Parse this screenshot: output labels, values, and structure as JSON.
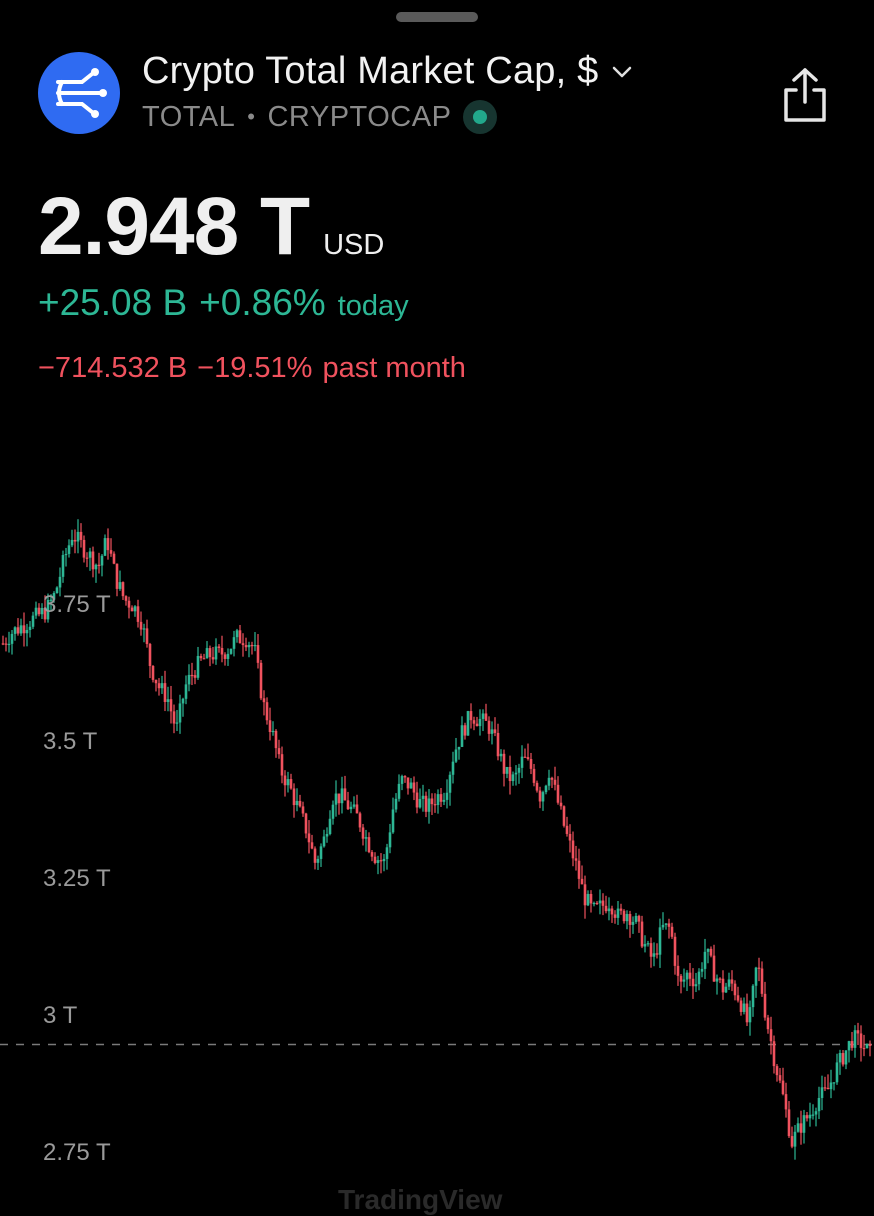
{
  "header": {
    "title": "Crypto Total Market Cap, $",
    "symbol": "TOTAL",
    "separator": "•",
    "exchange": "CRYPTOCAP",
    "logo_icon": "crypto-network-icon",
    "share_icon": "share-icon"
  },
  "quote": {
    "price": "2.948 T",
    "currency": "USD",
    "today_change": "+25.08 B",
    "today_percent": "+0.86%",
    "today_label": "today",
    "month_change": "−714.532 B",
    "month_percent": "−19.51%",
    "month_label": "past month"
  },
  "colors": {
    "up": "#2db795",
    "down": "#f0525e",
    "accent": "#2f6bf2",
    "background": "#000000"
  },
  "chart_data": {
    "type": "candlestick",
    "y_ticks": [
      "3.75 T",
      "3.5 T",
      "3.25 T",
      "3 T",
      "2.75 T"
    ],
    "y_tick_values": [
      3.75,
      3.5,
      3.25,
      3.0,
      2.75
    ],
    "ylim": [
      2.72,
      3.95
    ],
    "current_value": 2.948,
    "watermark": "TradingView",
    "path": [
      3.68,
      3.7,
      3.71,
      3.72,
      3.73,
      3.74,
      3.77,
      3.83,
      3.88,
      3.86,
      3.84,
      3.82,
      3.87,
      3.8,
      3.76,
      3.75,
      3.72,
      3.64,
      3.6,
      3.58,
      3.52,
      3.6,
      3.63,
      3.65,
      3.66,
      3.66,
      3.67,
      3.69,
      3.69,
      3.67,
      3.57,
      3.52,
      3.45,
      3.42,
      3.38,
      3.34,
      3.28,
      3.32,
      3.4,
      3.4,
      3.38,
      3.36,
      3.32,
      3.29,
      3.28,
      3.38,
      3.43,
      3.42,
      3.39,
      3.38,
      3.4,
      3.41,
      3.48,
      3.52,
      3.55,
      3.54,
      3.53,
      3.49,
      3.44,
      3.43,
      3.47,
      3.45,
      3.4,
      3.45,
      3.39,
      3.33,
      3.28,
      3.22,
      3.19,
      3.2,
      3.21,
      3.18,
      3.19,
      3.17,
      3.13,
      3.1,
      3.16,
      3.16,
      3.05,
      3.08,
      3.06,
      3.12,
      3.08,
      3.05,
      3.06,
      3.03,
      2.98,
      3.1,
      3.0,
      2.92,
      2.85,
      2.77,
      2.8,
      2.82,
      2.85,
      2.86,
      2.9,
      2.93,
      2.96,
      2.95,
      2.93
    ]
  }
}
